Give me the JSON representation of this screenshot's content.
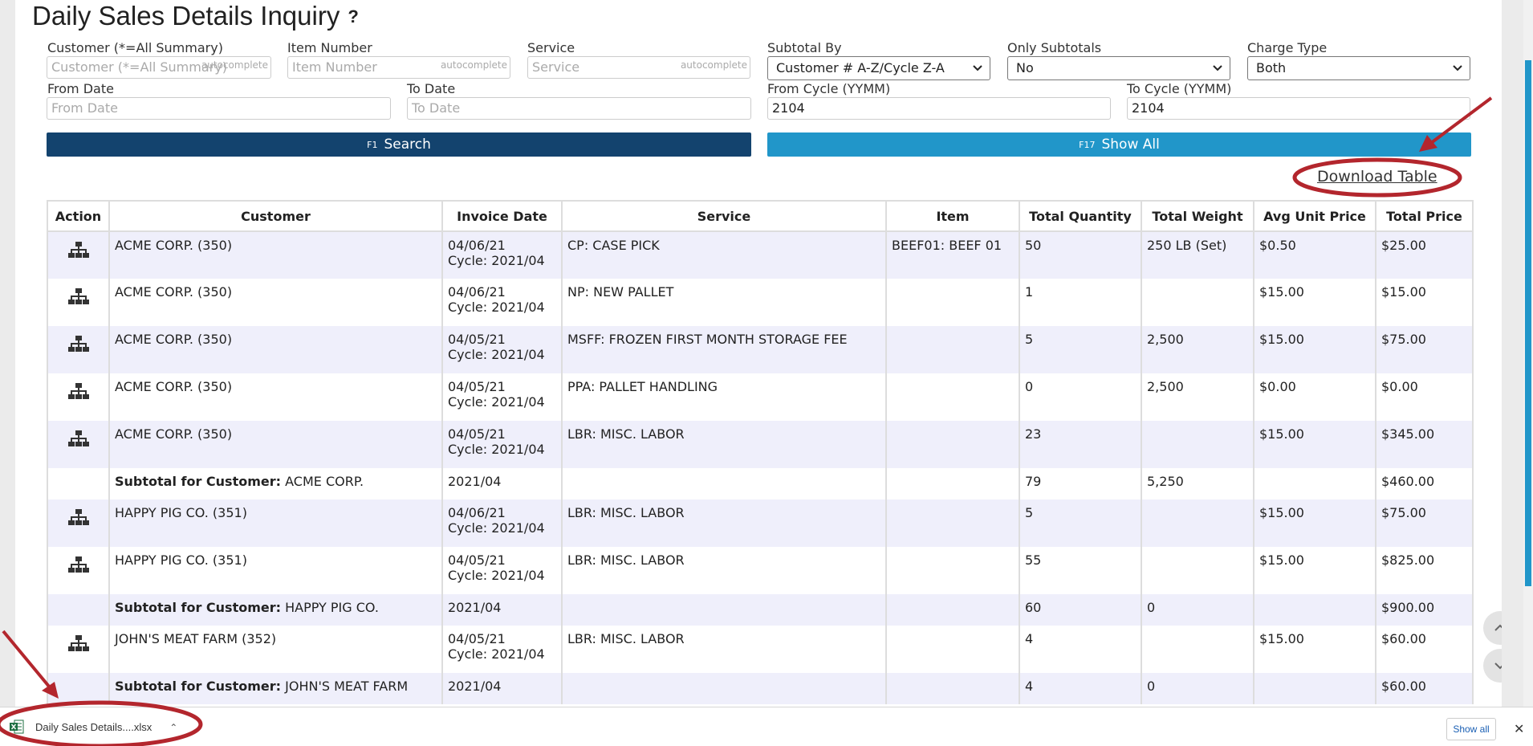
{
  "page": {
    "title": "Daily Sales Details Inquiry",
    "help_icon": "?"
  },
  "filters": {
    "customer": {
      "label": "Customer (*=All Summary)",
      "placeholder": "Customer (*=All Summary)",
      "hint": "autocomplete",
      "value": ""
    },
    "item_number": {
      "label": "Item Number",
      "placeholder": "Item Number",
      "hint": "autocomplete",
      "value": ""
    },
    "service": {
      "label": "Service",
      "placeholder": "Service",
      "hint": "autocomplete",
      "value": ""
    },
    "subtotal_by": {
      "label": "Subtotal By",
      "value": "Customer # A-Z/Cycle Z-A"
    },
    "only_subtotals": {
      "label": "Only Subtotals",
      "value": "No"
    },
    "charge_type": {
      "label": "Charge Type",
      "value": "Both"
    },
    "from_date": {
      "label": "From Date",
      "placeholder": "From Date",
      "value": ""
    },
    "to_date": {
      "label": "To Date",
      "placeholder": "To Date",
      "value": ""
    },
    "from_cycle": {
      "label": "From Cycle (YYMM)",
      "value": "2104"
    },
    "to_cycle": {
      "label": "To Cycle (YYMM)",
      "value": "2104"
    }
  },
  "buttons": {
    "search": {
      "key": "F1",
      "label": "Search"
    },
    "show_all": {
      "key": "F17",
      "label": "Show All"
    }
  },
  "download_table_link": "Download Table",
  "table": {
    "headers": [
      "Action",
      "Customer",
      "Invoice Date",
      "Service",
      "Item",
      "Total Quantity",
      "Total Weight",
      "Avg Unit Price",
      "Total Price"
    ],
    "rows": [
      {
        "customer": "ACME CORP. (350)",
        "date": "04/06/21",
        "cycle": "Cycle: 2021/04",
        "service": "CP: CASE PICK",
        "item": "BEEF01: BEEF 01",
        "qty": "50",
        "weight": "250 LB (Set)",
        "avg": "$0.50",
        "total": "$25.00"
      },
      {
        "customer": "ACME CORP. (350)",
        "date": "04/06/21",
        "cycle": "Cycle: 2021/04",
        "service": "NP: NEW PALLET",
        "item": "",
        "qty": "1",
        "weight": "",
        "avg": "$15.00",
        "total": "$15.00"
      },
      {
        "customer": "ACME CORP. (350)",
        "date": "04/05/21",
        "cycle": "Cycle: 2021/04",
        "service": "MSFF: FROZEN FIRST MONTH STORAGE FEE",
        "item": "",
        "qty": "5",
        "weight": "2,500",
        "avg": "$15.00",
        "total": "$75.00"
      },
      {
        "customer": "ACME CORP. (350)",
        "date": "04/05/21",
        "cycle": "Cycle: 2021/04",
        "service": "PPA: PALLET HANDLING",
        "item": "",
        "qty": "0",
        "weight": "2,500",
        "avg": "$0.00",
        "total": "$0.00"
      },
      {
        "customer": "ACME CORP. (350)",
        "date": "04/05/21",
        "cycle": "Cycle: 2021/04",
        "service": "LBR: MISC. LABOR",
        "item": "",
        "qty": "23",
        "weight": "",
        "avg": "$15.00",
        "total": "$345.00"
      },
      {
        "subtotal": true,
        "prefix": "Subtotal for Customer:",
        "customer": "ACME CORP.",
        "date": "2021/04",
        "qty": "79",
        "weight": "5,250",
        "avg": "",
        "total": "$460.00"
      },
      {
        "customer": "HAPPY PIG CO. (351)",
        "date": "04/06/21",
        "cycle": "Cycle: 2021/04",
        "service": "LBR: MISC. LABOR",
        "item": "",
        "qty": "5",
        "weight": "",
        "avg": "$15.00",
        "total": "$75.00"
      },
      {
        "customer": "HAPPY PIG CO. (351)",
        "date": "04/05/21",
        "cycle": "Cycle: 2021/04",
        "service": "LBR: MISC. LABOR",
        "item": "",
        "qty": "55",
        "weight": "",
        "avg": "$15.00",
        "total": "$825.00"
      },
      {
        "subtotal": true,
        "prefix": "Subtotal for Customer:",
        "customer": "HAPPY PIG CO.",
        "date": "2021/04",
        "qty": "60",
        "weight": "0",
        "avg": "",
        "total": "$900.00"
      },
      {
        "customer": "JOHN'S MEAT FARM (352)",
        "date": "04/05/21",
        "cycle": "Cycle: 2021/04",
        "service": "LBR: MISC. LABOR",
        "item": "",
        "qty": "4",
        "weight": "",
        "avg": "$15.00",
        "total": "$60.00"
      },
      {
        "subtotal": true,
        "prefix": "Subtotal for Customer:",
        "customer": "JOHN'S MEAT FARM",
        "date": "2021/04",
        "qty": "4",
        "weight": "0",
        "avg": "",
        "total": "$60.00"
      }
    ]
  },
  "download_bar": {
    "filename": "Daily Sales Details....xlsx",
    "show_all": "Show all",
    "close": "✕"
  },
  "colors": {
    "search_button": "#13436e",
    "show_all_button": "#2196c9",
    "row_stripe": "#efeffb",
    "annotation": "#b3262d"
  }
}
